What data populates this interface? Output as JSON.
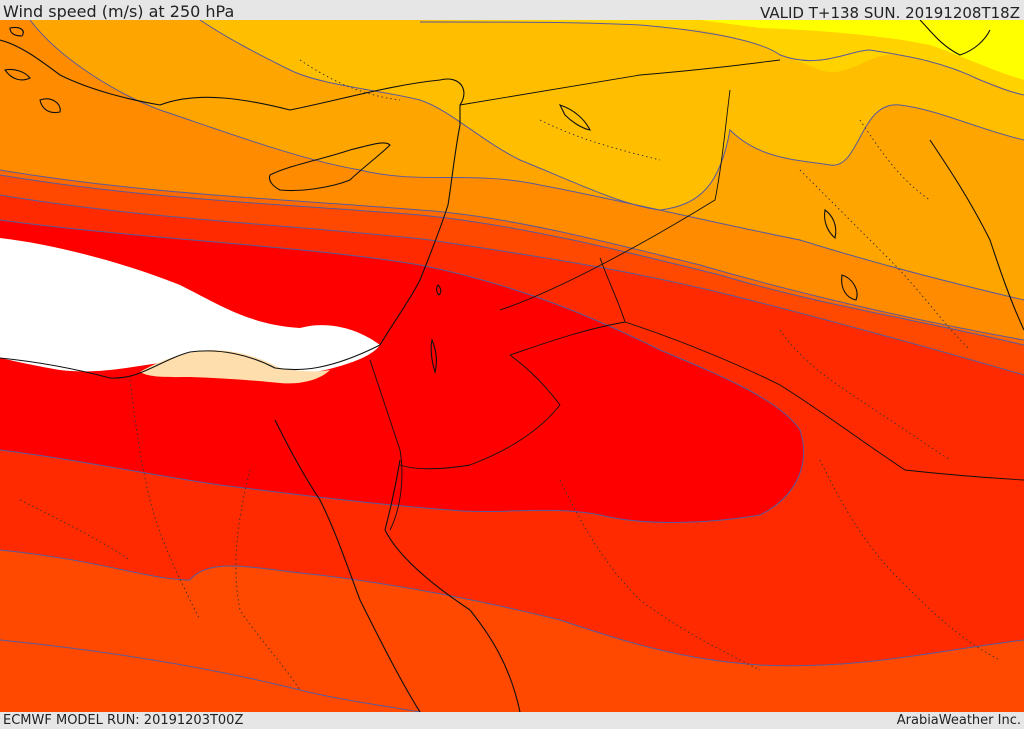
{
  "header": {
    "title": "Wind speed (m/s) at 250 hPa",
    "valid": "VALID T+138 SUN. 20191208T18Z"
  },
  "footer": {
    "model_run": "ECMWF MODEL RUN: 20191203T00Z",
    "credit": "ArabiaWeather Inc."
  },
  "map": {
    "colors": {
      "band_1": "#ffff00",
      "band_2": "#ffd200",
      "band_3": "#ffbf00",
      "band_4": "#ffa500",
      "band_5": "#ff8c00",
      "band_6": "#ff6a00",
      "band_7": "#ff4800",
      "band_8": "#ff2a00",
      "band_9": "#ff0000",
      "band_max": "#ffffff",
      "low": "#ffdead",
      "contour": "#5a5a9a",
      "coast": "#111111"
    }
  }
}
